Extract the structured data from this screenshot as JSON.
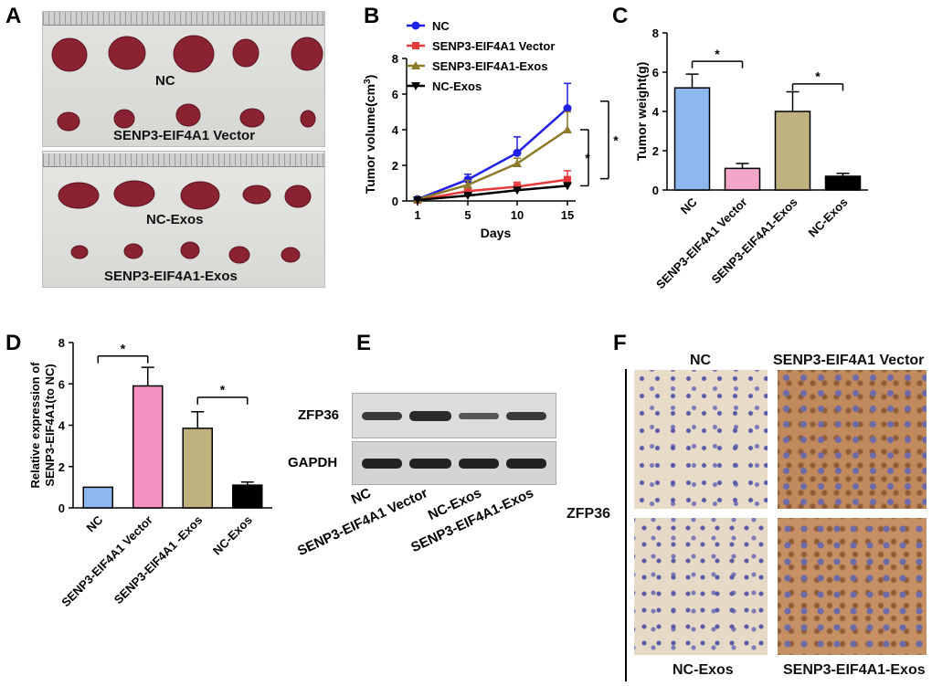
{
  "panels": {
    "a": {
      "letter": "A",
      "top_labels": [
        "NC",
        "SENP3-EIF4A1 Vector"
      ],
      "bottom_labels": [
        "NC-Exos",
        "SENP3-EIF4A1-Exos"
      ]
    },
    "e": {
      "letter": "E",
      "rows": [
        "ZFP36",
        "GAPDH"
      ],
      "lanes": [
        "NC",
        "SENP3-EIF4A1 Vector",
        "NC-Exos",
        "SENP3-EIF4A1-Exos"
      ]
    },
    "f": {
      "letter": "F",
      "marker": "ZFP36",
      "labels": [
        "NC",
        "SENP3-EIF4A1 Vector",
        "NC-Exos",
        "SENP3-EIF4A1-Exos"
      ]
    }
  },
  "chart_data": [
    {
      "panel": "B",
      "type": "line",
      "x": [
        1,
        5,
        10,
        15
      ],
      "xlabel": "Days",
      "ylabel": "Tumor volume(cm",
      "ylabel_sup": "3",
      "ylabel_end": ")",
      "ylim": [
        0,
        8
      ],
      "yticks": [
        0,
        2,
        4,
        6,
        8
      ],
      "legend_position": "top-left",
      "series": [
        {
          "name": "NC",
          "values": [
            0.1,
            1.2,
            2.7,
            5.2
          ],
          "err": [
            0.05,
            0.3,
            0.9,
            1.4
          ],
          "color": "#1f1fe6"
        },
        {
          "name": "SENP3-EIF4A1 Vector",
          "values": [
            0.05,
            0.55,
            0.8,
            1.2
          ],
          "err": [
            0.03,
            0.2,
            0.25,
            0.5
          ],
          "color": "#e83a3a"
        },
        {
          "name": "SENP3-EIF4A1-Exos",
          "values": [
            0.1,
            0.9,
            2.1,
            4.0
          ],
          "err": [
            0.05,
            0.25,
            0.3,
            1.0
          ],
          "color": "#8c7a2a"
        },
        {
          "name": "NC-Exos",
          "values": [
            0.05,
            0.3,
            0.6,
            0.85
          ],
          "err": [
            0.02,
            0.1,
            0.1,
            0.1
          ],
          "color": "#000000"
        }
      ],
      "significance": [
        "*",
        "*"
      ]
    },
    {
      "panel": "C",
      "type": "bar",
      "categories": [
        "NC",
        "SENP3-EIF4A1 Vector",
        "SENP3-EIF4A1-Exos",
        "NC-Exos"
      ],
      "values": [
        5.2,
        1.1,
        4.0,
        0.7
      ],
      "err": [
        0.7,
        0.25,
        1.0,
        0.15
      ],
      "colors": [
        "#8cb8ef",
        "#f2a6c9",
        "#bfb27f",
        "#000000"
      ],
      "ylabel": "Tumor weight(g)",
      "ylim": [
        0,
        8
      ],
      "yticks": [
        0,
        2,
        4,
        6,
        8
      ],
      "significance": [
        "*",
        "*"
      ]
    },
    {
      "panel": "D",
      "type": "bar",
      "categories": [
        "NC",
        "SENP3-EIF4A1 Vector",
        "SENP3-EIF4A1 -Exos",
        "NC-Exos"
      ],
      "values": [
        1.0,
        5.9,
        3.85,
        1.1
      ],
      "err": [
        0,
        0.9,
        0.8,
        0.15
      ],
      "colors": [
        "#8cb8ef",
        "#f591c2",
        "#bfb27f",
        "#000000"
      ],
      "ylabel": "Relative expression of",
      "ylabel2": "SENP3-EIF4A1(to NC)",
      "ylim": [
        0,
        8
      ],
      "yticks": [
        0,
        2,
        4,
        6,
        8
      ],
      "significance": [
        "*",
        "*"
      ]
    }
  ]
}
